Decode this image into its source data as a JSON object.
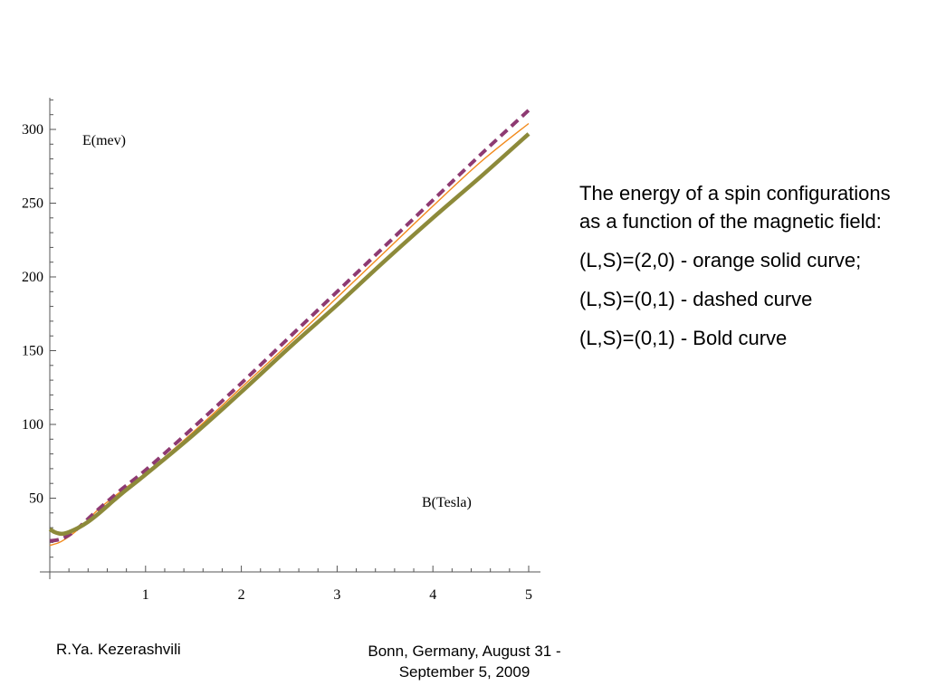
{
  "chart_data": {
    "type": "line",
    "ylabel": "E(mev)",
    "xlabel": "B(Tesla)",
    "xlim": [
      0,
      5.05
    ],
    "ylim": [
      0,
      320
    ],
    "x_ticks": [
      1,
      2,
      3,
      4,
      5
    ],
    "y_ticks": [
      50,
      100,
      150,
      200,
      250,
      300
    ],
    "grid": false,
    "series": [
      {
        "style": "orange solid",
        "color": "#f28a1c",
        "x": [
          0,
          0.1,
          0.2,
          0.3,
          0.4,
          0.5,
          0.75,
          1,
          1.5,
          2,
          2.5,
          3,
          3.5,
          4,
          4.5,
          5
        ],
        "values": [
          18,
          20,
          24,
          29,
          35,
          42,
          55,
          67,
          95,
          125,
          155,
          186,
          217,
          248,
          278,
          304
        ]
      },
      {
        "style": "dashed",
        "color": "#8e3a72",
        "x": [
          0,
          0.1,
          0.2,
          0.3,
          0.4,
          0.5,
          0.75,
          1,
          1.5,
          2,
          2.5,
          3,
          3.5,
          4,
          4.5,
          5
        ],
        "values": [
          21,
          22,
          25,
          30,
          36,
          42,
          56,
          69,
          98,
          128,
          159,
          190,
          221,
          252,
          283,
          313
        ]
      },
      {
        "style": "bold",
        "color": "#8d8a3a",
        "x": [
          0,
          0.05,
          0.1,
          0.15,
          0.2,
          0.3,
          0.4,
          0.5,
          0.75,
          1,
          1.5,
          2,
          2.5,
          3,
          3.5,
          4,
          4.5,
          5
        ],
        "values": [
          29,
          27,
          26,
          26,
          27,
          30,
          34,
          39,
          53,
          66,
          93,
          122,
          152,
          181,
          211,
          240,
          268,
          297
        ]
      }
    ]
  },
  "description": {
    "lines": [
      "The energy of a spin configurations as a function of the magnetic field:",
      "(L,S)=(2,0) -  orange solid curve;",
      "(L,S)=(0,1) - dashed curve",
      "(L,S)=(0,1) - Bold curve"
    ]
  },
  "footer": {
    "author": "R.Ya. Kezerashvili",
    "venue": "Bonn, Germany, August 31 - September 5, 2009"
  }
}
